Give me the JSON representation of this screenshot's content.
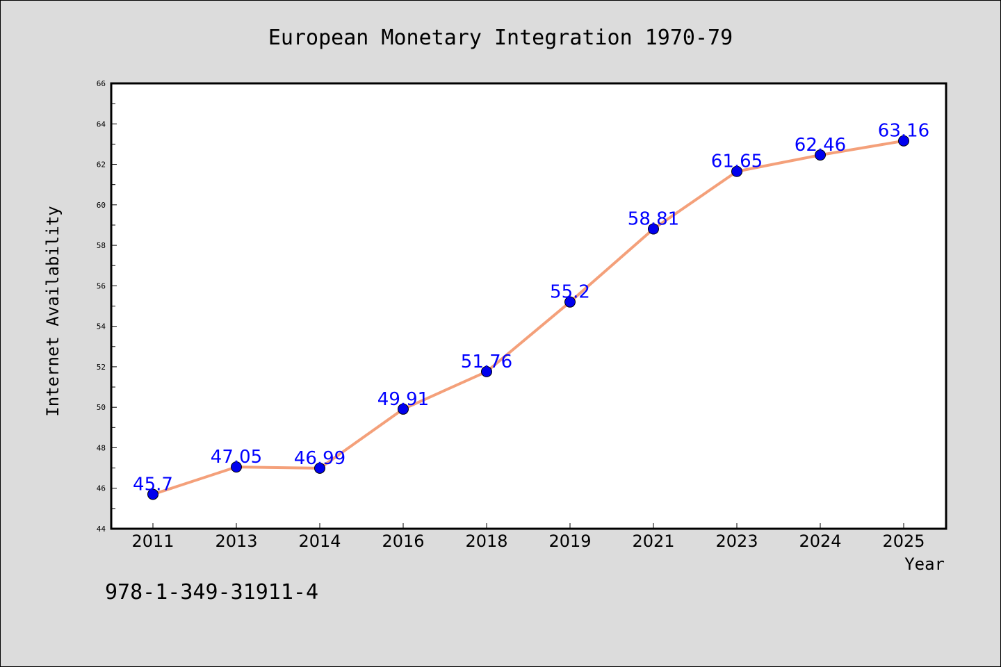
{
  "chart_data": {
    "type": "line",
    "title": "European Monetary Integration 1970-79",
    "xlabel": "Year",
    "ylabel": "Internet Availability",
    "categories": [
      "2011",
      "2013",
      "2014",
      "2016",
      "2018",
      "2019",
      "2021",
      "2023",
      "2024",
      "2025"
    ],
    "values": [
      45.7,
      47.05,
      46.99,
      49.91,
      51.76,
      55.2,
      58.81,
      61.65,
      62.46,
      63.16
    ],
    "data_labels": [
      "45.7",
      "47.05",
      "46.99",
      "49.91",
      "51.76",
      "55.2",
      "58.81",
      "61.65",
      "62.46",
      "63.16"
    ],
    "ylim": [
      44,
      66
    ],
    "y_ticks": [
      "44",
      "46",
      "48",
      "50",
      "52",
      "54",
      "56",
      "58",
      "60",
      "62",
      "64",
      "66"
    ],
    "grid": false,
    "line_color": "#f4a07a",
    "marker_color": "#0000ee",
    "label_color": "#0000ff"
  },
  "footer": {
    "isbn": "978-1-349-31911-4"
  }
}
